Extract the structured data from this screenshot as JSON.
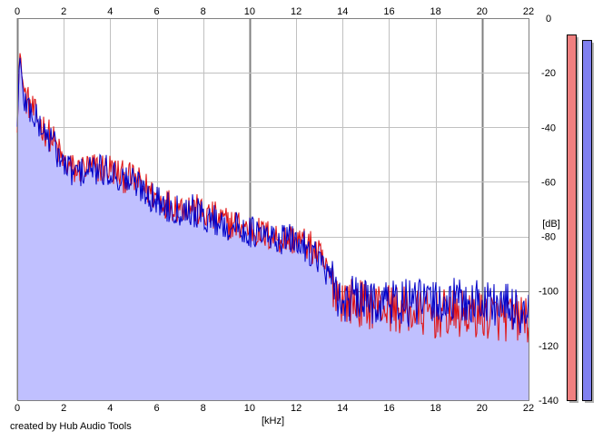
{
  "credit": "created by Hub Audio Tools",
  "colors": {
    "left_channel": "#e01010",
    "right_channel": "#0000c8",
    "fill": "#c0c0ff",
    "grid_minor": "#c0c0c0",
    "grid_major": "#808080",
    "meter_left": "#f08080",
    "meter_right": "#8080f0"
  },
  "chart_data": {
    "type": "line",
    "xlabel": "[kHz]",
    "ylabel": "[dB]",
    "xlim": [
      0,
      22
    ],
    "ylim": [
      -140,
      0
    ],
    "x_ticks": [
      0,
      2,
      4,
      6,
      8,
      10,
      12,
      14,
      16,
      18,
      20,
      22
    ],
    "y_ticks": [
      0,
      -20,
      -40,
      -60,
      -80,
      -100,
      -120,
      -140
    ],
    "x_tick_labels": [
      "0",
      "2",
      "4",
      "6",
      "8",
      "10",
      "12",
      "14",
      "16",
      "18",
      "20",
      "22"
    ],
    "y_tick_labels": [
      "0",
      "-20",
      "-40",
      "-60",
      "-80",
      "-100",
      "-120",
      "-140"
    ],
    "grid": true,
    "x_tick_positions": [
      "top",
      "bottom"
    ],
    "y_tick_position": "right",
    "series": [
      {
        "channel": "left",
        "color": "#e01010",
        "x": [
          0,
          0.1,
          0.3,
          0.6,
          1,
          1.5,
          2,
          2.5,
          3,
          3.5,
          4,
          4.5,
          5,
          5.5,
          6,
          6.5,
          7,
          7.5,
          8,
          8.5,
          9,
          9.5,
          10,
          10.5,
          11,
          11.5,
          12,
          12.5,
          13,
          13.5,
          14,
          14.5,
          15,
          15.5,
          16,
          16.5,
          17,
          17.5,
          18,
          18.5,
          19,
          19.5,
          20,
          20.5,
          21,
          21.5,
          22
        ],
        "y": [
          -40,
          -12,
          -28,
          -33,
          -39,
          -44,
          -53,
          -56,
          -55,
          -55,
          -55,
          -58,
          -59,
          -62,
          -66,
          -68,
          -69,
          -69,
          -72,
          -73,
          -75,
          -76,
          -77,
          -79,
          -80,
          -81,
          -81,
          -83,
          -87,
          -96,
          -103,
          -104,
          -105,
          -105,
          -106,
          -107,
          -108,
          -108,
          -109,
          -108,
          -109,
          -108,
          -109,
          -109,
          -110,
          -110,
          -110
        ]
      },
      {
        "channel": "right",
        "color": "#0000c8",
        "x": [
          0,
          0.1,
          0.3,
          0.6,
          1,
          1.5,
          2,
          2.5,
          3,
          3.5,
          4,
          4.5,
          5,
          5.5,
          6,
          6.5,
          7,
          7.5,
          8,
          8.5,
          9,
          9.5,
          10,
          10.5,
          11,
          11.5,
          12,
          12.5,
          13,
          13.5,
          14,
          14.5,
          15,
          15.5,
          16,
          16.5,
          17,
          17.5,
          18,
          18.5,
          19,
          19.5,
          20,
          20.5,
          21,
          21.5,
          22
        ],
        "y": [
          -40,
          -14,
          -30,
          -34,
          -40,
          -45,
          -54,
          -57,
          -56,
          -56,
          -56,
          -59,
          -60,
          -63,
          -67,
          -69,
          -70,
          -70,
          -73,
          -74,
          -76,
          -77,
          -78,
          -80,
          -81,
          -81,
          -82,
          -84,
          -88,
          -97,
          -104,
          -103,
          -104,
          -103,
          -104,
          -104,
          -105,
          -104,
          -104,
          -104,
          -104,
          -104,
          -104,
          -104,
          -106,
          -107,
          -108
        ]
      }
    ]
  },
  "meters": [
    {
      "channel": "left",
      "level_db": -6,
      "color": "#f08080"
    },
    {
      "channel": "right",
      "level_db": -8,
      "color": "#8080f0"
    }
  ]
}
